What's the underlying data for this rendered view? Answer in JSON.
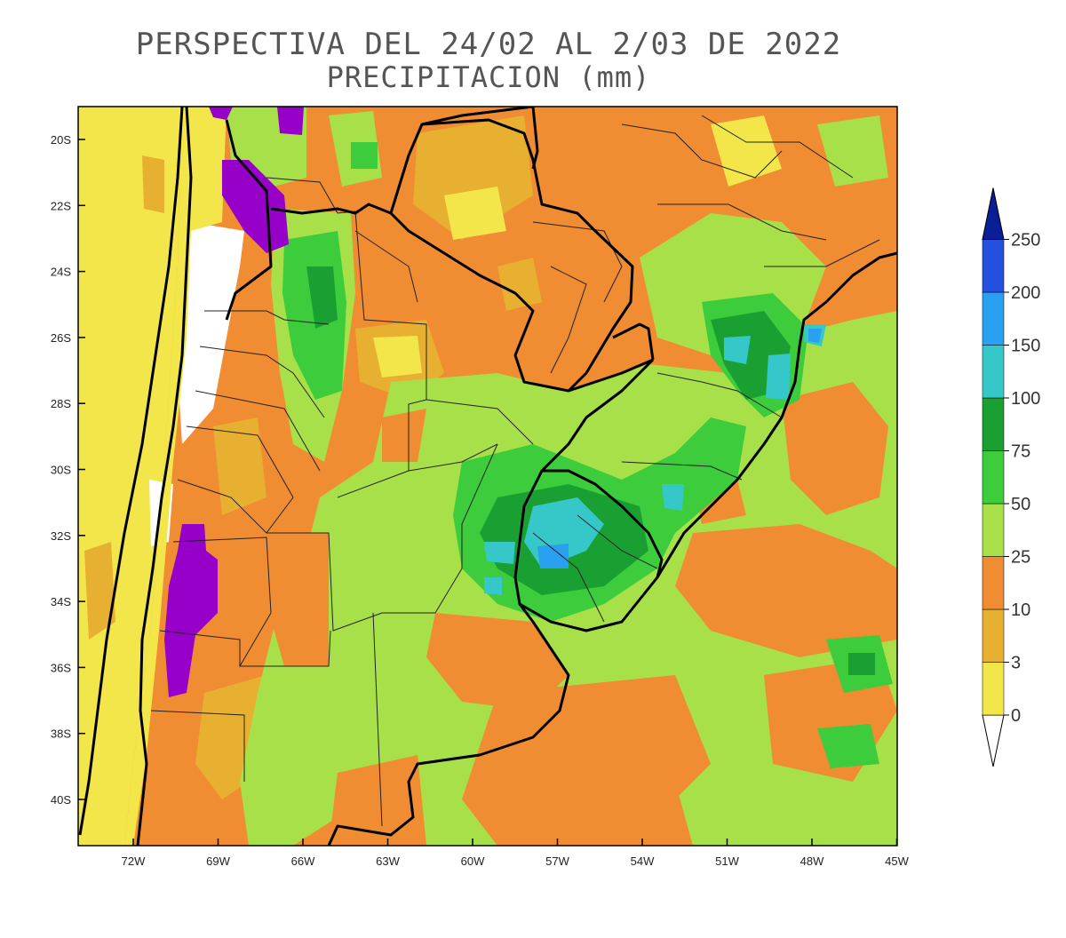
{
  "title": {
    "line1": "PERSPECTIVA DEL 24/02 AL 2/03 DE 2022",
    "line2": "PRECIPITACION (mm)"
  },
  "map": {
    "lat_labels": [
      "20S",
      "22S",
      "24S",
      "26S",
      "28S",
      "30S",
      "32S",
      "34S",
      "36S",
      "38S",
      "40S"
    ],
    "lon_labels": [
      "72W",
      "69W",
      "66W",
      "63W",
      "60W",
      "57W",
      "54W",
      "51W",
      "48W",
      "45W"
    ]
  },
  "colorbar": {
    "levels": [
      "0",
      "3",
      "10",
      "25",
      "50",
      "75",
      "100",
      "150",
      "200",
      "250"
    ],
    "colors": [
      "#f2e64a",
      "#e8b030",
      "#f08c32",
      "#a8e04a",
      "#3ccc3c",
      "#1aa032",
      "#36c8c8",
      "#2aa0f0",
      "#2450e0",
      "#0a1e96"
    ],
    "under_color": "#ffffff",
    "extreme_color": "#9600c8"
  }
}
